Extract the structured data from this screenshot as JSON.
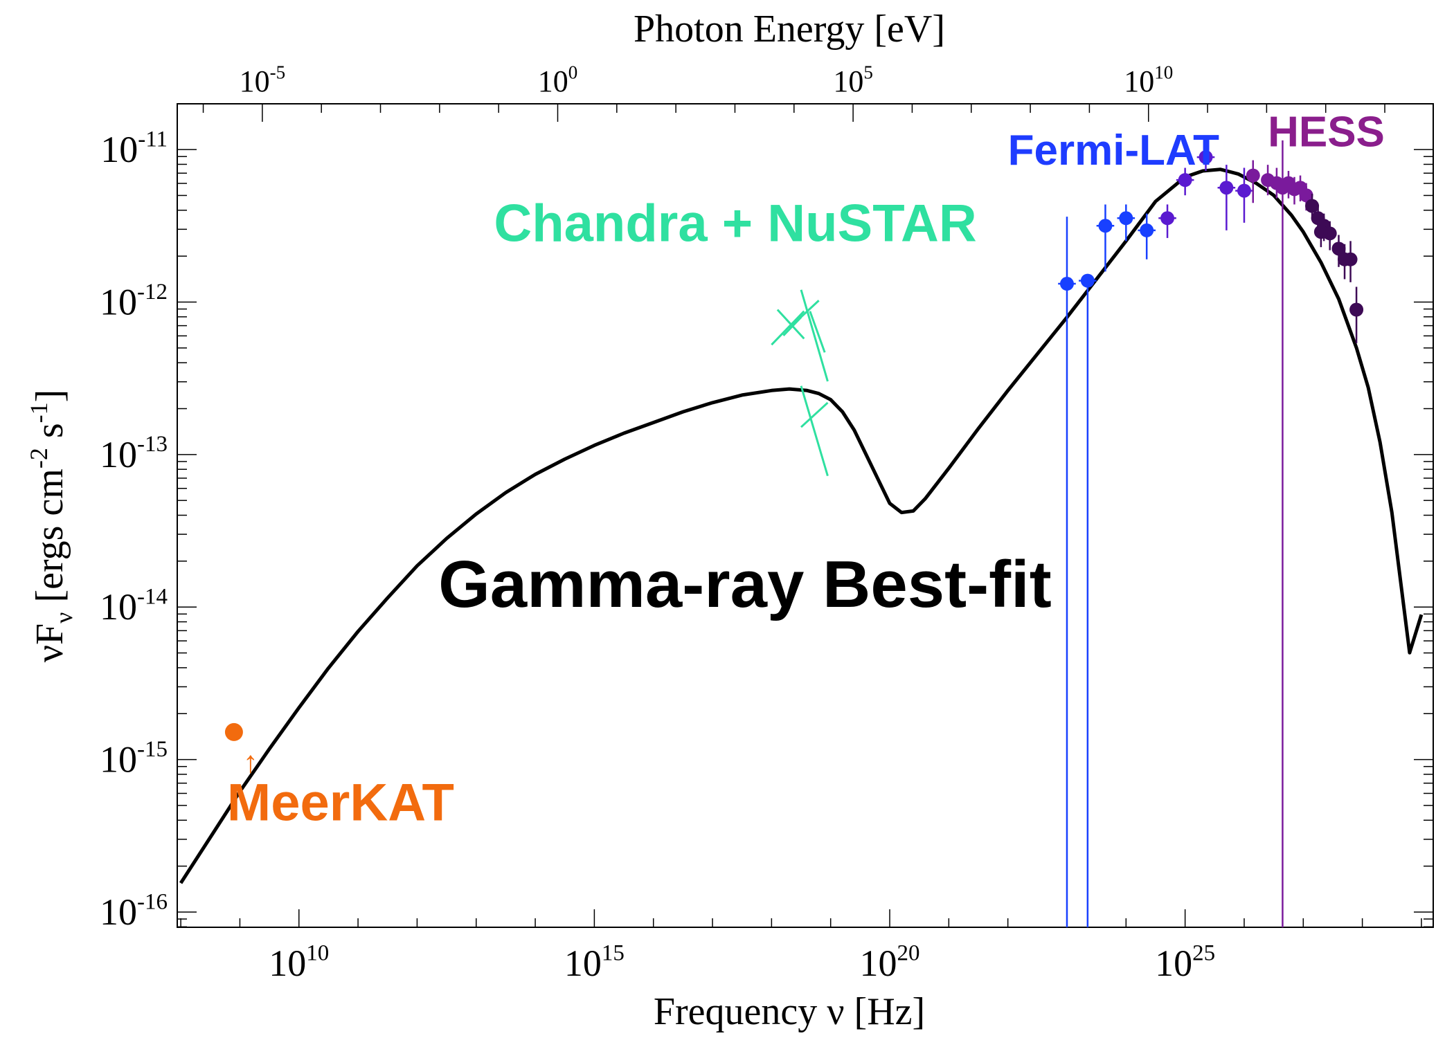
{
  "chart_data": {
    "type": "scatter",
    "title": "",
    "xlabel": "Frequency ν [Hz]",
    "ylabel_main": "νF",
    "ylabel_sub": "ν",
    "ylabel_units": "[ergs cm",
    "ylabel_exp1": "-2",
    "ylabel_mid": " s",
    "ylabel_exp2": "-1",
    "ylabel_close": "]",
    "top_axis_label": "Photon Energy [eV]",
    "xscale": "log",
    "yscale": "log",
    "x_log_range": [
      7.94,
      29.2
    ],
    "y_log_range": [
      -16.1,
      -10.7
    ],
    "x_ticks": [
      {
        "base": "10",
        "exp": "10",
        "log": 10
      },
      {
        "base": "10",
        "exp": "15",
        "log": 15
      },
      {
        "base": "10",
        "exp": "20",
        "log": 20
      },
      {
        "base": "10",
        "exp": "25",
        "log": 25
      }
    ],
    "y_ticks": [
      {
        "base": "10",
        "exp": "-11",
        "log": -11
      },
      {
        "base": "10",
        "exp": "-12",
        "log": -12
      },
      {
        "base": "10",
        "exp": "-13",
        "log": -13
      },
      {
        "base": "10",
        "exp": "-14",
        "log": -14
      },
      {
        "base": "10",
        "exp": "-15",
        "log": -15
      },
      {
        "base": "10",
        "exp": "-16",
        "log": -16
      }
    ],
    "top_ticks": [
      {
        "base": "10",
        "exp": "-5",
        "log_freq": 9.38
      },
      {
        "base": "10",
        "exp": "0",
        "log_freq": 14.38
      },
      {
        "base": "10",
        "exp": "5",
        "log_freq": 19.38
      },
      {
        "base": "10",
        "exp": "10",
        "log_freq": 24.38
      }
    ],
    "series": [
      {
        "name": "Gamma-ray Best-fit",
        "kind": "line",
        "color": "#000000",
        "x": [
          8.0,
          8.5,
          9.0,
          9.5,
          10.0,
          10.5,
          11.0,
          11.5,
          12.0,
          12.5,
          13.0,
          13.5,
          14.0,
          14.5,
          15.0,
          15.5,
          16.0,
          16.5,
          17.0,
          17.5,
          18.0,
          18.3,
          18.6,
          18.8,
          19.0,
          19.2,
          19.4,
          19.6,
          19.8,
          20.0,
          20.2,
          20.4,
          20.6,
          20.8,
          21.0,
          21.5,
          22.0,
          22.5,
          23.0,
          23.5,
          24.0,
          24.5,
          25.0,
          25.3,
          25.6,
          25.9,
          26.2,
          26.5,
          26.8,
          27.0,
          27.3,
          27.6,
          27.9,
          28.1,
          28.3,
          28.5,
          28.8,
          29.0
        ],
        "y": [
          -15.81,
          -15.51,
          -15.21,
          -14.93,
          -14.66,
          -14.4,
          -14.16,
          -13.94,
          -13.73,
          -13.55,
          -13.39,
          -13.25,
          -13.13,
          -13.03,
          -12.94,
          -12.86,
          -12.79,
          -12.72,
          -12.66,
          -12.61,
          -12.58,
          -12.57,
          -12.58,
          -12.6,
          -12.64,
          -12.72,
          -12.84,
          -13.0,
          -13.16,
          -13.32,
          -13.38,
          -13.37,
          -13.29,
          -13.19,
          -13.09,
          -12.83,
          -12.58,
          -12.34,
          -12.1,
          -11.85,
          -11.6,
          -11.34,
          -11.18,
          -11.14,
          -11.13,
          -11.16,
          -11.22,
          -11.3,
          -11.43,
          -11.54,
          -11.74,
          -11.98,
          -12.3,
          -12.56,
          -12.92,
          -13.38,
          -14.3,
          -14.05
        ]
      },
      {
        "name": "MeerKAT",
        "kind": "points",
        "color": "#f26b0e",
        "x": [
          8.9
        ],
        "y": [
          -14.82
        ],
        "lower_limit": true
      },
      {
        "name": "Chandra + NuSTAR",
        "kind": "bowtie",
        "color": "#2fe0a0",
        "segments": [
          [
            [
              18.0,
              -12.28
            ],
            [
              18.55,
              -12.06
            ]
          ],
          [
            [
              18.1,
              -12.05
            ],
            [
              18.55,
              -12.24
            ]
          ],
          [
            [
              18.2,
              -12.22
            ],
            [
              18.5,
              -12.1
            ]
          ],
          [
            [
              18.5,
              -11.92
            ],
            [
              18.95,
              -12.52
            ]
          ],
          [
            [
              18.3,
              -12.17
            ],
            [
              18.8,
              -11.99
            ]
          ],
          [
            [
              18.5,
              -12.55
            ],
            [
              18.95,
              -13.14
            ]
          ],
          [
            [
              18.5,
              -12.82
            ],
            [
              18.95,
              -12.66
            ]
          ],
          [
            [
              18.65,
              -12.06
            ],
            [
              18.9,
              -12.33
            ]
          ]
        ]
      },
      {
        "name": "Fermi-LAT",
        "kind": "errorbars",
        "color_start": "#1840ff",
        "color_end": "#5a1ad0",
        "points": [
          {
            "x": 23.0,
            "y": -11.88,
            "ylo": -16.1,
            "yhi": -11.44,
            "xerr": 0.15
          },
          {
            "x": 23.35,
            "y": -11.86,
            "ylo": -16.1,
            "yhi": -11.86,
            "xerr": 0.15
          },
          {
            "x": 23.65,
            "y": -11.5,
            "ylo": -11.8,
            "yhi": -11.36,
            "xerr": 0.15
          },
          {
            "x": 24.0,
            "y": -11.45,
            "ylo": -11.6,
            "yhi": -11.36,
            "xerr": 0.15
          },
          {
            "x": 24.35,
            "y": -11.53,
            "ylo": -11.72,
            "yhi": -11.42,
            "xerr": 0.15
          },
          {
            "x": 24.7,
            "y": -11.45,
            "ylo": -11.58,
            "yhi": -11.36,
            "xerr": 0.15
          },
          {
            "x": 25.0,
            "y": -11.2,
            "ylo": -11.3,
            "yhi": -11.12,
            "xerr": 0.15
          },
          {
            "x": 25.35,
            "y": -11.05,
            "ylo": -11.14,
            "yhi": -10.98,
            "xerr": 0.15
          },
          {
            "x": 25.7,
            "y": -11.25,
            "ylo": -11.53,
            "yhi": -11.1,
            "xerr": 0.15
          },
          {
            "x": 26.0,
            "y": -11.27,
            "ylo": -11.48,
            "yhi": -11.12,
            "xerr": 0.15
          }
        ]
      },
      {
        "name": "HESS",
        "kind": "errorbars",
        "color": "#7a1a9c",
        "color_dark": "#3d0a55",
        "points": [
          {
            "x": 26.15,
            "y": -11.17,
            "ylo": -11.35,
            "yhi": -11.07
          },
          {
            "x": 26.4,
            "y": -11.2,
            "ylo": -11.3,
            "yhi": -11.1
          },
          {
            "x": 26.55,
            "y": -11.22,
            "ylo": -11.32,
            "yhi": -11.12
          },
          {
            "x": 26.65,
            "y": -11.25,
            "ylo": -16.1,
            "yhi": -10.94
          },
          {
            "x": 26.75,
            "y": -11.22,
            "ylo": -11.32,
            "yhi": -11.14
          },
          {
            "x": 26.85,
            "y": -11.26,
            "ylo": -11.36,
            "yhi": -11.18
          },
          {
            "x": 26.95,
            "y": -11.25,
            "ylo": -11.34,
            "yhi": -11.17
          },
          {
            "x": 27.05,
            "y": -11.3,
            "ylo": -11.4,
            "yhi": -11.22
          },
          {
            "x": 27.15,
            "y": -11.37,
            "ylo": -11.46,
            "yhi": -11.29
          },
          {
            "x": 27.25,
            "y": -11.45,
            "ylo": -11.54,
            "yhi": -11.37
          },
          {
            "x": 27.35,
            "y": -11.5,
            "ylo": -11.6,
            "yhi": -11.42
          },
          {
            "x": 27.45,
            "y": -11.55,
            "ylo": -11.66,
            "yhi": -11.47
          },
          {
            "x": 27.6,
            "y": -11.65,
            "ylo": -11.77,
            "yhi": -11.56
          },
          {
            "x": 27.7,
            "y": -11.72,
            "ylo": -11.85,
            "yhi": -11.62
          },
          {
            "x": 27.8,
            "y": -11.72,
            "ylo": -11.87,
            "yhi": -11.6
          },
          {
            "x": 27.9,
            "y": -12.05,
            "ylo": -12.27,
            "yhi": -11.9
          },
          {
            "x": 27.3,
            "y": -11.54,
            "ylo": -11.64,
            "yhi": -11.45
          }
        ]
      }
    ],
    "annotations": [
      {
        "text": "Gamma-ray Best-fit",
        "color": "#000000",
        "anchor_x": 14.0,
        "anchor_y": -14.0
      },
      {
        "text": "MeerKAT",
        "color": "#f26b0e",
        "anchor_x": 8.9,
        "anchor_y": -15.4
      },
      {
        "text": "Chandra + NuSTAR",
        "color": "#2fe0a0",
        "anchor_x": 13.3,
        "anchor_y": -11.6
      },
      {
        "text": "Fermi-LAT",
        "color": "#1e3cff",
        "anchor_x": 22.0,
        "anchor_y": -11.1
      },
      {
        "text": "HESS",
        "color": "#8a1e8c",
        "anchor_x": 26.4,
        "anchor_y": -10.98
      }
    ],
    "lower_limit_arrow": "↑"
  }
}
